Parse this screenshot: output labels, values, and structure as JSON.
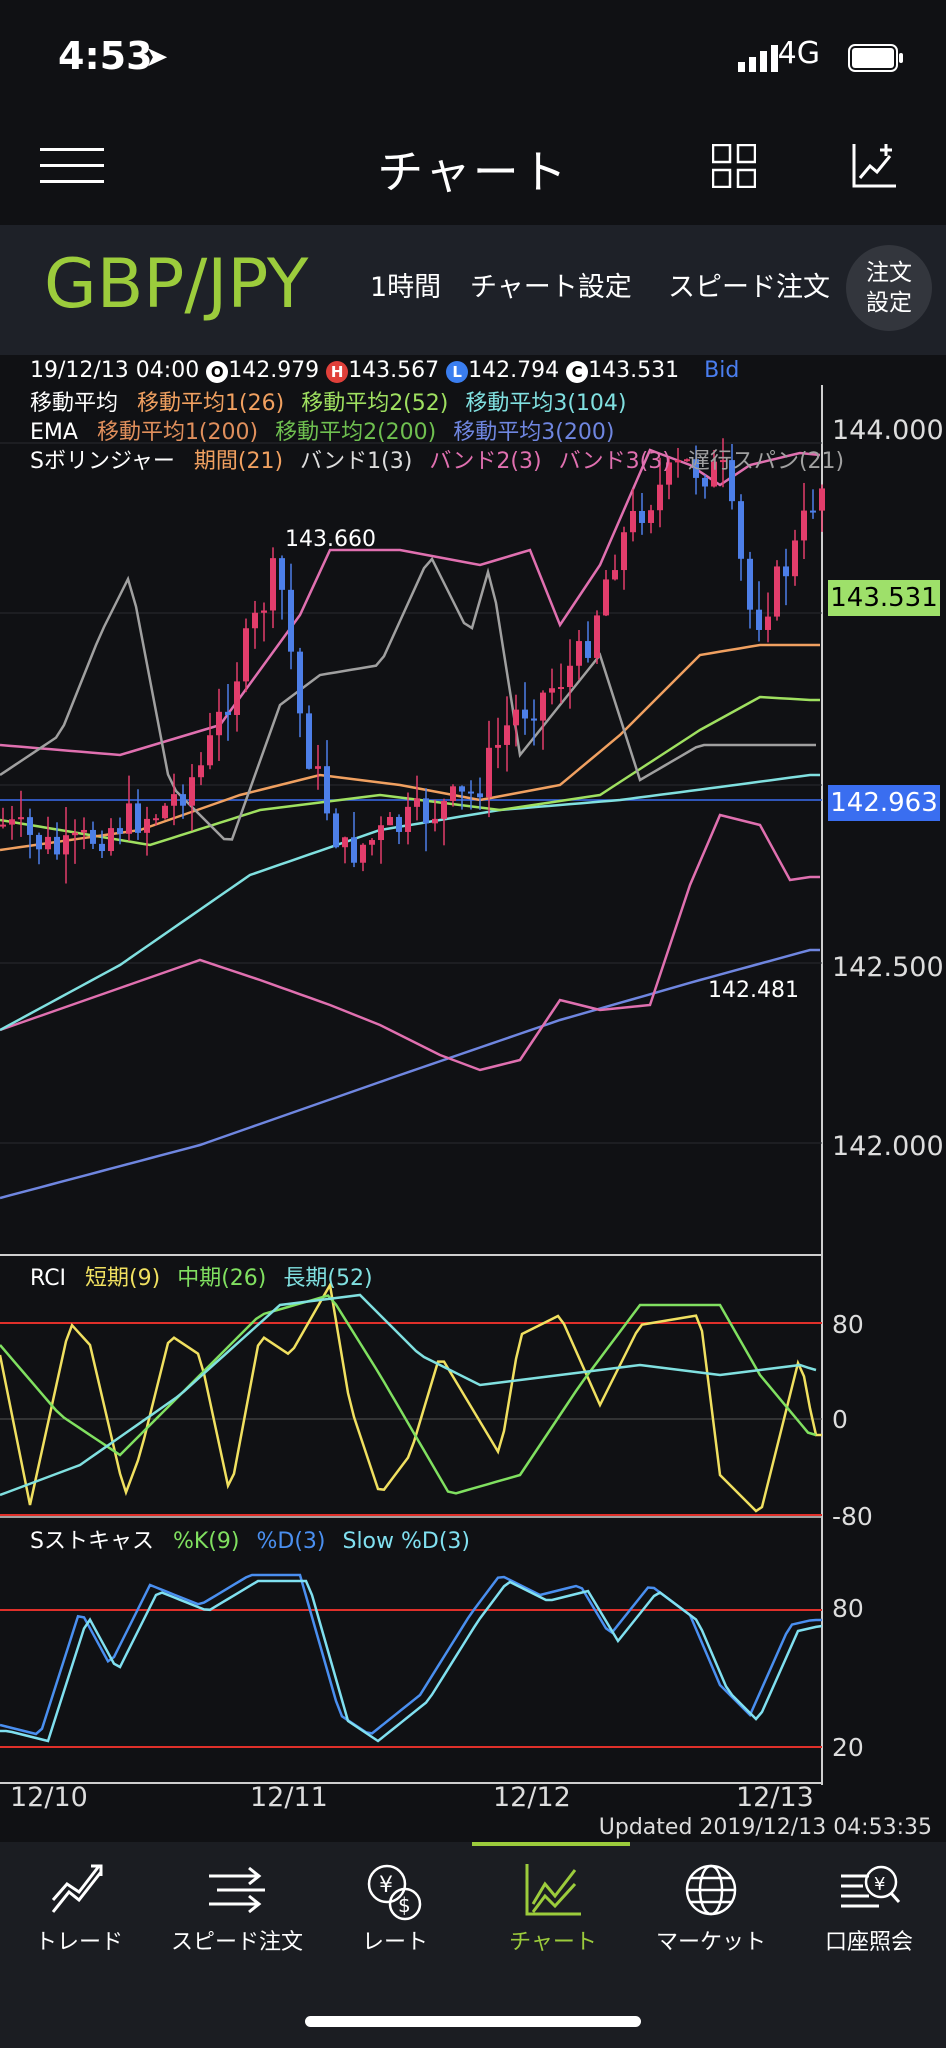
{
  "status_bar": {
    "time": "4:53",
    "network": "4G"
  },
  "nav": {
    "title": "チャート"
  },
  "pair_bar": {
    "pair": "GBP/JPY",
    "interval": "1時間",
    "chart_settings": "チャート設定",
    "speed_order": "スピード注文",
    "order_settings_line1": "注文",
    "order_settings_line2": "設定"
  },
  "ohlc": {
    "datetime": "19/12/13 04:00",
    "open_badge": "O",
    "open": "142.979",
    "high_badge": "H",
    "high": "143.567",
    "low_badge": "L",
    "low": "142.794",
    "close_badge": "C",
    "close": "143.531",
    "side": "Bid"
  },
  "legends": {
    "sma": {
      "label": "移動平均",
      "items": [
        "移動平均1(26)",
        "移動平均2(52)",
        "移動平均3(104)"
      ]
    },
    "ema": {
      "label": "EMA",
      "items": [
        "移動平均1(200)",
        "移動平均2(200)",
        "移動平均3(200)"
      ]
    },
    "bollinger": {
      "label": "Sボリンジャー",
      "items": [
        "期間(21)",
        "バンド1(3)",
        "バンド2(3)",
        "バンド3(3)",
        "遅行スパン(21)"
      ]
    },
    "rci": {
      "label": "RCI",
      "items": [
        "短期(9)",
        "中期(26)",
        "長期(52)"
      ]
    },
    "stoch": {
      "label": "Sストキャス",
      "items": [
        "%K(9)",
        "%D(3)",
        "Slow %D(3)"
      ]
    }
  },
  "colors": {
    "up_candle": "#e23d6b",
    "down_candle": "#4d7fe8",
    "sma1": "#f0a060",
    "sma2": "#9fe060",
    "sma3": "#80e0e0",
    "ema3": "#6f86e0",
    "band": "#e070b0",
    "lagging": "#a0a0a0",
    "rci_short": "#f0e060",
    "rci_mid": "#80e060",
    "rci_long": "#80e0e0",
    "stoch_d": "#4a8ff0",
    "stoch_slow": "#80e0f0",
    "close_tag": "#9ee06a",
    "bid_tag": "#3a6ef0",
    "accent": "#9ccc3c"
  },
  "price_chart": {
    "axis_labels": [
      "144.000",
      "142.500",
      "142.000"
    ],
    "current_close": "143.531",
    "bid_line": "142.963",
    "high_marker": "143.660",
    "low_marker": "142.481"
  },
  "rci_axis": [
    "80",
    "0",
    "-80"
  ],
  "stoch_axis": [
    "80",
    "20"
  ],
  "x_axis": [
    "12/10",
    "12/11",
    "12/12",
    "12/13"
  ],
  "updated": "Updated  2019/12/13 04:53:35",
  "tabs": [
    {
      "label": "トレード",
      "icon": "trade-icon"
    },
    {
      "label": "スピード注文",
      "icon": "speed-order-icon"
    },
    {
      "label": "レート",
      "icon": "rate-icon"
    },
    {
      "label": "チャート",
      "icon": "chart-icon",
      "active": true
    },
    {
      "label": "マーケット",
      "icon": "market-icon"
    },
    {
      "label": "口座照会",
      "icon": "account-icon"
    }
  ]
}
